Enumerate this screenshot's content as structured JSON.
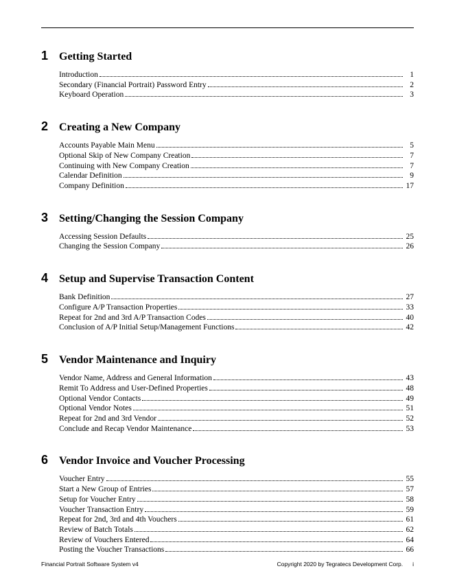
{
  "chapters": [
    {
      "num": "1",
      "title": "Getting Started",
      "entries": [
        {
          "title": "Introduction",
          "page": "1"
        },
        {
          "title": "Secondary (Financial Portrait) Password Entry",
          "page": "2"
        },
        {
          "title": "Keyboard Operation",
          "page": "3"
        }
      ]
    },
    {
      "num": "2",
      "title": "Creating a New Company",
      "entries": [
        {
          "title": "Accounts Payable Main Menu",
          "page": "5"
        },
        {
          "title": "Optional Skip of New Company Creation",
          "page": "7"
        },
        {
          "title": "Continuing with New Company Creation",
          "page": "7"
        },
        {
          "title": "Calendar Definition",
          "page": "9"
        },
        {
          "title": "Company Definition",
          "page": "17"
        }
      ]
    },
    {
      "num": "3",
      "title": "Setting/Changing the Session Company",
      "entries": [
        {
          "title": "Accessing Session Defaults",
          "page": "25"
        },
        {
          "title": "Changing the Session Company",
          "page": "26"
        }
      ]
    },
    {
      "num": "4",
      "title": "Setup and Supervise Transaction Content",
      "entries": [
        {
          "title": "Bank Definition",
          "page": "27"
        },
        {
          "title": "Configure A/P Transaction Properties",
          "page": "33"
        },
        {
          "title": "Repeat for 2nd and 3rd A/P Transaction Codes",
          "page": "40"
        },
        {
          "title": "Conclusion of A/P Initial Setup/Management Functions",
          "page": "42"
        }
      ]
    },
    {
      "num": "5",
      "title": "Vendor Maintenance and Inquiry",
      "entries": [
        {
          "title": "Vendor Name, Address and General Information",
          "page": "43"
        },
        {
          "title": "Remit To Address and User-Defined Properties",
          "page": "48"
        },
        {
          "title": "Optional Vendor Contacts",
          "page": "49"
        },
        {
          "title": "Optional Vendor Notes",
          "page": "51"
        },
        {
          "title": "Repeat for 2nd and 3rd Vendor",
          "page": "52"
        },
        {
          "title": "Conclude and Recap Vendor Maintenance",
          "page": "53"
        }
      ]
    },
    {
      "num": "6",
      "title": "Vendor Invoice and Voucher Processing",
      "entries": [
        {
          "title": "Voucher Entry",
          "page": "55"
        },
        {
          "title": "Start a New Group of Entries",
          "page": "57"
        },
        {
          "title": "Setup for Voucher Entry",
          "page": "58"
        },
        {
          "title": "Voucher Transaction Entry",
          "page": "59"
        },
        {
          "title": "Repeat for 2nd, 3rd and 4th Vouchers",
          "page": "61"
        },
        {
          "title": "Review of Batch Totals",
          "page": "62"
        },
        {
          "title": "Review of Vouchers Entered",
          "page": "64"
        },
        {
          "title": "Posting the Voucher Transactions",
          "page": "66"
        }
      ]
    }
  ],
  "footer": {
    "left": "Financial Portrait Software System v4",
    "right": "Copyright 2020 by Tegratecs Development Corp.",
    "pagenum": "i"
  }
}
